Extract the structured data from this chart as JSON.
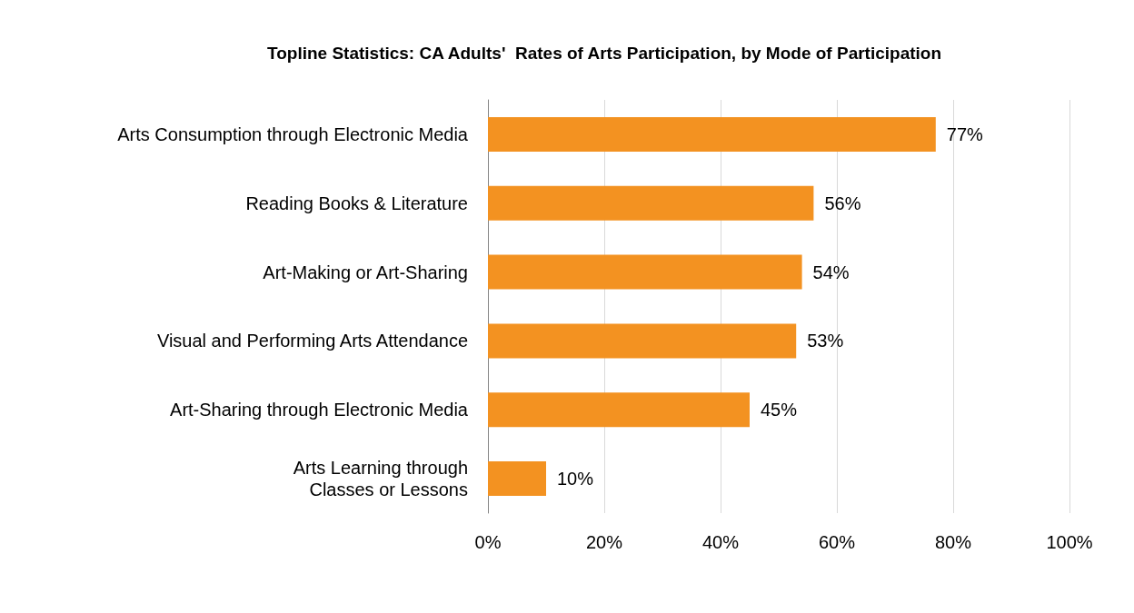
{
  "chart_data": {
    "type": "bar",
    "orientation": "horizontal",
    "title": "Topline Statistics: CA Adults'  Rates of Arts Participation, by Mode of Participation",
    "categories": [
      "Arts Consumption through Electronic Media",
      "Reading Books & Literature",
      "Art-Making or Art-Sharing",
      "Visual and Performing Arts Attendance",
      "Art-Sharing through Electronic Media",
      "Arts Learning through\nClasses or Lessons"
    ],
    "values": [
      77,
      56,
      54,
      53,
      45,
      10
    ],
    "value_labels": [
      "77%",
      "56%",
      "54%",
      "53%",
      "45%",
      "10%"
    ],
    "color": "#f39221",
    "xlim": [
      0,
      100
    ],
    "xticks": [
      {
        "value": 0,
        "label": "0%"
      },
      {
        "value": 20,
        "label": "20%"
      },
      {
        "value": 40,
        "label": "40%"
      },
      {
        "value": 60,
        "label": "60%"
      },
      {
        "value": 80,
        "label": "80%"
      },
      {
        "value": 100,
        "label": "100%"
      }
    ],
    "grid": "x"
  }
}
